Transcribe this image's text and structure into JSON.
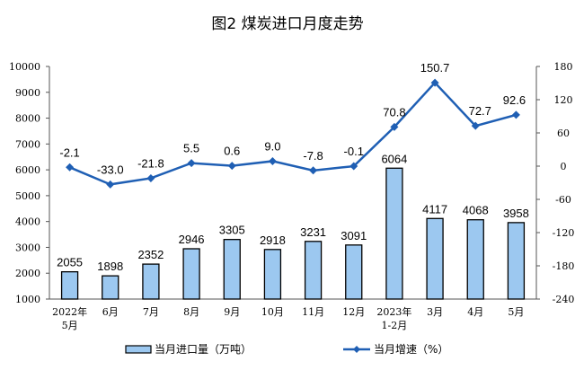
{
  "chart_data": {
    "type": "bar+line",
    "title": "图2  煤炭进口月度走势",
    "categories": [
      "2022年\n5月",
      "6月",
      "7月",
      "8月",
      "9月",
      "10月",
      "11月",
      "12月",
      "2023年\n1-2月",
      "3月",
      "4月",
      "5月"
    ],
    "series": [
      {
        "name": "当月进口量（万吨）",
        "type": "bar",
        "axis": "left",
        "color": "#9cc8f0",
        "values": [
          2055,
          1898,
          2352,
          2946,
          3305,
          2918,
          3231,
          3091,
          6064,
          4117,
          4068,
          3958
        ]
      },
      {
        "name": "当月增速（%）",
        "type": "line",
        "axis": "right",
        "color": "#1f5fb4",
        "values": [
          -2.1,
          -33.0,
          -21.8,
          5.5,
          0.6,
          9.0,
          -7.8,
          -0.1,
          70.8,
          150.7,
          72.7,
          92.6
        ],
        "labels": [
          "-2.1",
          "-33.0",
          "-21.8",
          "5.5",
          "0.6",
          "9.0",
          "-7.8",
          "-0.1",
          "70.8",
          "150.7",
          "72.7",
          "92.6"
        ]
      }
    ],
    "left_axis": {
      "range": [
        1000,
        10000
      ],
      "ticks": [
        1000,
        2000,
        3000,
        4000,
        5000,
        6000,
        7000,
        8000,
        9000,
        10000
      ]
    },
    "right_axis": {
      "range": [
        -240,
        180
      ],
      "ticks": [
        -240,
        -180,
        -120,
        -60,
        0,
        60,
        120,
        180
      ]
    },
    "grid": false,
    "legend": "bottom"
  }
}
